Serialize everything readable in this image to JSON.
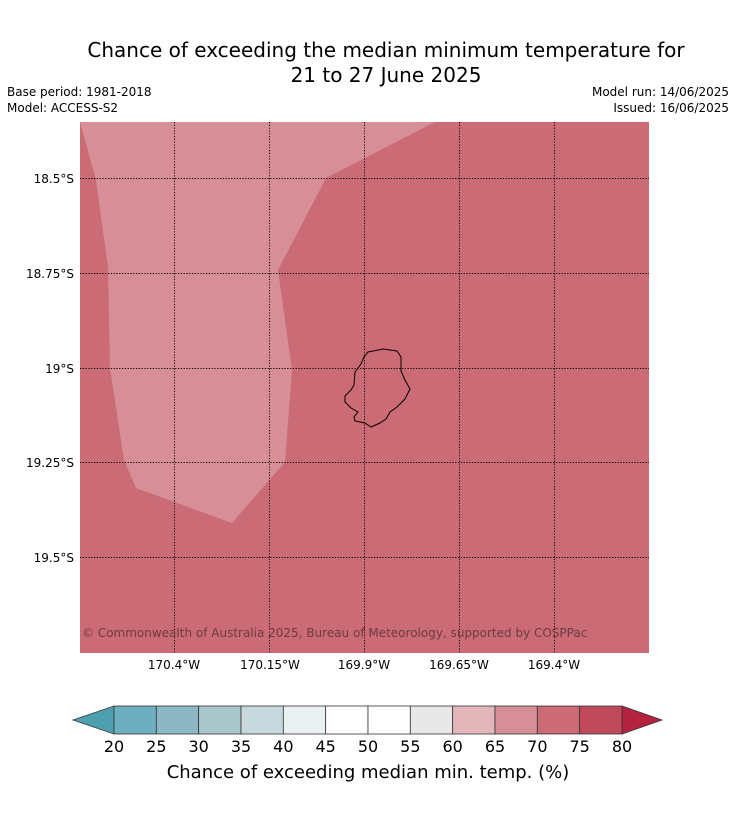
{
  "title": {
    "line1": "Chance of exceeding the median minimum temperature for",
    "line2": "21 to 27 June 2025"
  },
  "meta": {
    "base_period": "Base period: 1981-2018",
    "model": "Model: ACCESS-S2",
    "model_run": "Model run: 14/06/2025",
    "issued": "Issued: 16/06/2025"
  },
  "map": {
    "lat_ticks": [
      "18.5°S",
      "18.75°S",
      "19°S",
      "19.25°S",
      "19.5°S"
    ],
    "lon_ticks": [
      "170.4°W",
      "170.15°W",
      "169.9°W",
      "169.65°W",
      "169.4°W"
    ],
    "copyright": "© Commonwealth of Australia 2025, Bureau of Meteorology, supported by COSPPac",
    "region_colors": {
      "70-75": "#cb6b75",
      "65-70": "#d68f96"
    }
  },
  "colorbar": {
    "label": "Chance of exceeding median min. temp. (%)",
    "ticks": [
      "20",
      "25",
      "30",
      "35",
      "40",
      "45",
      "50",
      "55",
      "60",
      "65",
      "70",
      "75",
      "80"
    ],
    "under_color": "#4e9fb0",
    "over_color": "#b52240",
    "bin_colors": [
      "#6daec0",
      "#8db7c4",
      "#a8c6cb",
      "#c8d9dd",
      "#e9f1f3",
      "#ffffff",
      "#ffffff",
      "#e8e8e8",
      "#e2b6bb",
      "#d68f96",
      "#cb6b75",
      "#c04a5c"
    ]
  }
}
